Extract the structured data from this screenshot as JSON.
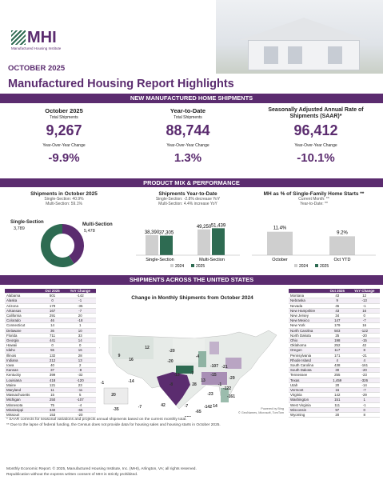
{
  "header": {
    "logo_text": "MHI",
    "logo_sub": "Manufactured Housing Institute",
    "date": "OCTOBER 2025",
    "title": "Manufactured Housing Report Highlights"
  },
  "colors": {
    "purple": "#5b2c6f",
    "green": "#2e6b52",
    "grey": "#cfcfcf"
  },
  "sections": {
    "new_shipments": "NEW MANUFACTURED HOME SHIPMENTS",
    "product_mix": "PRODUCT MIX & PERFORMANCE",
    "states": "SHIPMENTS ACROSS THE UNITED STATES"
  },
  "kpis": [
    {
      "title": "October 2025",
      "sub": "Total Shipments",
      "value": "9,267",
      "yoy_label": "Year-Over-Year Change",
      "yoy": "-9.9%"
    },
    {
      "title": "Year-to-Date",
      "sub": "Total Shipments",
      "value": "88,744",
      "yoy_label": "Year-Over-Year Change",
      "yoy": "1.3%"
    },
    {
      "title": "Seasonally Adjusted Annual Rate of Shipments (SAAR)*",
      "sub": "",
      "value": "96,412",
      "yoy_label": "Year-Over-Year Change",
      "yoy": "-10.1%"
    }
  ],
  "mix": {
    "oct": {
      "title": "Shipments in October 2025",
      "line1": "Single-Section: 40.9%",
      "line2": "Multi-Section: 59.1%",
      "single_label": "Single-Section",
      "single_value": "3,789",
      "multi_label": "Multi-Section",
      "multi_value": "5,478"
    },
    "ytd": {
      "title": "Shipments Year-to-Date",
      "line1": "Single-Section: -2.8% decrease YoY",
      "line2": "Multi-Section: 4.4% increase YoY"
    },
    "pct": {
      "title": "MH as % of Single-Family Home Starts **",
      "line1": "Current Month: **",
      "line2": "Year-to-Date: **"
    }
  },
  "chart_data": [
    {
      "type": "pie",
      "title": "Shipments in October 2025",
      "categories": [
        "Single-Section",
        "Multi-Section"
      ],
      "values": [
        3789,
        5478
      ]
    },
    {
      "type": "bar",
      "title": "Shipments Year-to-Date",
      "categories": [
        "Single-Section",
        "Multi-Section"
      ],
      "series": [
        {
          "name": "2024",
          "values": [
            38390,
            49250
          ]
        },
        {
          "name": "2025",
          "values": [
            37305,
            51439
          ]
        }
      ],
      "value_labels": [
        [
          "38,390",
          "37,305"
        ],
        [
          "49,250",
          "51,439"
        ]
      ],
      "legend": "bottom",
      "ylim": [
        0,
        55000
      ]
    },
    {
      "type": "bar",
      "title": "MH as % of Single-Family Home Starts **",
      "categories": [
        "October",
        "Oct YTD"
      ],
      "series": [
        {
          "name": "2024",
          "values": [
            11.4,
            9.2
          ]
        }
      ],
      "value_labels": [
        "11.4%",
        "9.2%"
      ],
      "legend_items": [
        "2024",
        "2025"
      ],
      "legend": "bottom",
      "ylim": [
        0,
        14
      ]
    }
  ],
  "table_headers": [
    "",
    "Oct 2025",
    "YoY Change"
  ],
  "states_left": [
    [
      "Alabama",
      "501",
      "-142"
    ],
    [
      "Alaska",
      "0",
      "-1"
    ],
    [
      "Arizona",
      "179",
      "-35"
    ],
    [
      "Arkansas",
      "167",
      "-7"
    ],
    [
      "California",
      "291",
      "20"
    ],
    [
      "Colorado",
      "46",
      "-18"
    ],
    [
      "Connecticut",
      "14",
      "1"
    ],
    [
      "Delaware",
      "36",
      "10"
    ],
    [
      "Florida",
      "711",
      "33"
    ],
    [
      "Georgia",
      "441",
      "14"
    ],
    [
      "Hawaii",
      "0",
      "0"
    ],
    [
      "Idaho",
      "55",
      "16"
    ],
    [
      "Illinois",
      "132",
      "28"
    ],
    [
      "Indiana",
      "212",
      "13"
    ],
    [
      "Iowa",
      "40",
      "2"
    ],
    [
      "Kansas",
      "37",
      "-8"
    ],
    [
      "Kentucky",
      "399",
      "-32"
    ],
    [
      "Louisiana",
      "418",
      "-120"
    ],
    [
      "Maine",
      "121",
      "23"
    ],
    [
      "Maryland",
      "11",
      "-11"
    ],
    [
      "Massachusetts",
      "15",
      "5"
    ],
    [
      "Michigan",
      "250",
      "-107"
    ],
    [
      "Minnesota",
      "75",
      "-4"
    ],
    [
      "Mississippi",
      "340",
      "-65"
    ],
    [
      "Missouri",
      "153",
      "-20"
    ]
  ],
  "states_right": [
    [
      "Montana",
      "43",
      "12"
    ],
    [
      "Nebraska",
      "9",
      "-13"
    ],
    [
      "Nevada",
      "45",
      "-1"
    ],
    [
      "New Hampshire",
      "43",
      "16"
    ],
    [
      "New Jersey",
      "34",
      "0"
    ],
    [
      "New Mexico",
      "147",
      "-7"
    ],
    [
      "New York",
      "179",
      "16"
    ],
    [
      "North Carolina",
      "503",
      "-122"
    ],
    [
      "North Dakota",
      "25",
      "-20"
    ],
    [
      "Ohio",
      "198",
      "-15"
    ],
    [
      "Oklahoma",
      "252",
      "42"
    ],
    [
      "Oregon",
      "117",
      "8"
    ],
    [
      "Pennsylvania",
      "171",
      "-21"
    ],
    [
      "Rhode Island",
      "4",
      "4"
    ],
    [
      "South Carolina",
      "438",
      "-161"
    ],
    [
      "South Dakota",
      "30",
      "-20"
    ],
    [
      "Tennessee",
      "255",
      "-23"
    ],
    [
      "Texas",
      "1,459",
      "-326"
    ],
    [
      "Utah",
      "20",
      "-14"
    ],
    [
      "Vermont",
      "16",
      "-7"
    ],
    [
      "Virginia",
      "142",
      "-29"
    ],
    [
      "Washington",
      "151",
      "1"
    ],
    [
      "West Virginia",
      "111",
      "-1"
    ],
    [
      "Wisconsin",
      "97",
      "0"
    ],
    [
      "Wyoming",
      "20",
      "8"
    ]
  ],
  "map": {
    "title": "Change in Monthly Shipments from October 2024",
    "credit1": "Powered by Bing",
    "credit2": "© GeoNames, Microsoft, TomTom",
    "labels": [
      {
        "v": "4",
        "x": 123,
        "y": 436
      },
      {
        "v": "12",
        "x": 184,
        "y": 436
      },
      {
        "v": "9",
        "x": 149,
        "y": 446
      },
      {
        "v": "16",
        "x": 164,
        "y": 451
      },
      {
        "v": "-20",
        "x": 215,
        "y": 440
      },
      {
        "v": "-4",
        "x": 247,
        "y": 447
      },
      {
        "v": "-20",
        "x": 213,
        "y": 453
      },
      {
        "v": "-107",
        "x": 268,
        "y": 459
      },
      {
        "v": "-13",
        "x": 221,
        "y": 470
      },
      {
        "v": "-7",
        "x": 240,
        "y": 468
      },
      {
        "v": "8",
        "x": 118,
        "y": 467
      },
      {
        "v": "-1",
        "x": 128,
        "y": 480
      },
      {
        "v": "-14",
        "x": 164,
        "y": 478
      },
      {
        "v": "-8",
        "x": 214,
        "y": 482
      },
      {
        "v": "28",
        "x": 243,
        "y": 482
      },
      {
        "v": "13",
        "x": 254,
        "y": 477
      },
      {
        "v": "-15",
        "x": 267,
        "y": 470
      },
      {
        "v": "-21",
        "x": 281,
        "y": 460
      },
      {
        "v": "-29",
        "x": 290,
        "y": 474
      },
      {
        "v": "-1",
        "x": 275,
        "y": 482
      },
      {
        "v": "-122",
        "x": 284,
        "y": 487
      },
      {
        "v": "-23",
        "x": 263,
        "y": 494
      },
      {
        "v": "-161",
        "x": 289,
        "y": 497
      },
      {
        "v": "20",
        "x": 142,
        "y": 495
      },
      {
        "v": "-35",
        "x": 145,
        "y": 513
      },
      {
        "v": "-7",
        "x": 175,
        "y": 510
      },
      {
        "v": "42",
        "x": 204,
        "y": 508
      },
      {
        "v": "-7",
        "x": 233,
        "y": 509
      },
      {
        "v": "-142",
        "x": 260,
        "y": 510
      },
      {
        "v": "14",
        "x": 269,
        "y": 509
      },
      {
        "v": "-65",
        "x": 248,
        "y": 516
      },
      {
        "v": "-120",
        "x": 234,
        "y": 524
      },
      {
        "v": "33",
        "x": 287,
        "y": 526
      },
      {
        "v": "-326",
        "x": 192,
        "y": 528
      },
      {
        "v": "-1",
        "x": 140,
        "y": 540
      },
      {
        "v": "0",
        "x": 165,
        "y": 540
      }
    ]
  },
  "footnotes": [
    "* SAAR corrects for seasonal variations and projects annual shipments based on the current monthly total.",
    "** Due to the lapse of federal funding, the Census does not provide data for housing sales and housing starts in October 2025."
  ],
  "footer": [
    "Monthly Economic Report. © 2025, Manufactured Housing Institute, Inc. (MHI), Arlington, VA; all rights reserved.",
    "Republication without the express written consent of MHI is strictly prohibited."
  ]
}
